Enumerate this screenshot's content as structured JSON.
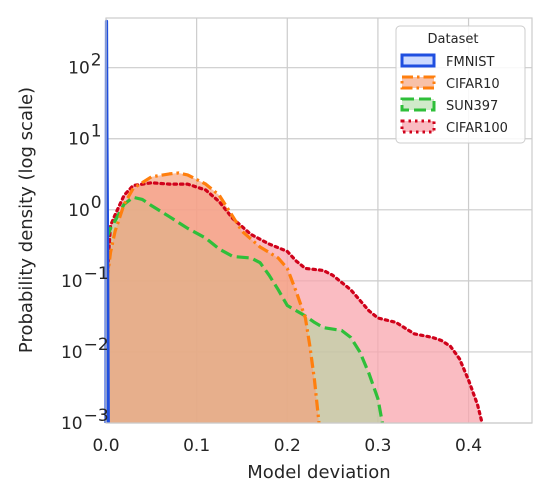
{
  "chart_data": {
    "type": "area",
    "xlabel": "Model deviation",
    "ylabel": "Probability density (log scale)",
    "x_range": [
      0.0,
      0.47
    ],
    "y_range": [
      0.001,
      500
    ],
    "y_scale": "log",
    "grid": true,
    "x_ticks": [
      {
        "value": 0.0,
        "label": "0.0"
      },
      {
        "value": 0.1,
        "label": "0.1"
      },
      {
        "value": 0.2,
        "label": "0.2"
      },
      {
        "value": 0.3,
        "label": "0.3"
      },
      {
        "value": 0.4,
        "label": "0.4"
      }
    ],
    "y_ticks": [
      {
        "value": 0.001,
        "base": "10",
        "exp": "−3"
      },
      {
        "value": 0.01,
        "base": "10",
        "exp": "−2"
      },
      {
        "value": 0.1,
        "base": "10",
        "exp": "−1"
      },
      {
        "value": 1,
        "base": "10",
        "exp": "0"
      },
      {
        "value": 10,
        "base": "10",
        "exp": "1"
      },
      {
        "value": 100,
        "base": "10",
        "exp": "2"
      }
    ],
    "legend": {
      "title": "Dataset",
      "position": "top-right"
    },
    "series": [
      {
        "name": "CIFAR100",
        "color": "#d0021b",
        "fill": "#f8a6ad",
        "fill_opacity": 0.75,
        "dash": "dotted",
        "points": [
          [
            0.001,
            0.1
          ],
          [
            0.005,
            0.6
          ],
          [
            0.01,
            0.85
          ],
          [
            0.02,
            1.6
          ],
          [
            0.03,
            2.2
          ],
          [
            0.05,
            2.4
          ],
          [
            0.07,
            2.3
          ],
          [
            0.09,
            2.3
          ],
          [
            0.11,
            1.9
          ],
          [
            0.125,
            1.3
          ],
          [
            0.14,
            0.75
          ],
          [
            0.16,
            0.45
          ],
          [
            0.18,
            0.33
          ],
          [
            0.2,
            0.26
          ],
          [
            0.21,
            0.19
          ],
          [
            0.22,
            0.15
          ],
          [
            0.24,
            0.14
          ],
          [
            0.25,
            0.12
          ],
          [
            0.27,
            0.075
          ],
          [
            0.29,
            0.038
          ],
          [
            0.3,
            0.03
          ],
          [
            0.32,
            0.026
          ],
          [
            0.34,
            0.018
          ],
          [
            0.36,
            0.016
          ],
          [
            0.37,
            0.0145
          ],
          [
            0.38,
            0.012
          ],
          [
            0.39,
            0.008
          ],
          [
            0.4,
            0.004
          ],
          [
            0.41,
            0.0018
          ],
          [
            0.415,
            0.001
          ]
        ]
      },
      {
        "name": "SUN397",
        "color": "#2fbf3a",
        "fill": "#a9d99e",
        "fill_opacity": 0.55,
        "dash": "dashed",
        "points": [
          [
            0.001,
            0.4
          ],
          [
            0.005,
            0.55
          ],
          [
            0.01,
            0.7
          ],
          [
            0.02,
            1.2
          ],
          [
            0.03,
            1.5
          ],
          [
            0.04,
            1.4
          ],
          [
            0.05,
            1.15
          ],
          [
            0.07,
            0.8
          ],
          [
            0.09,
            0.55
          ],
          [
            0.11,
            0.4
          ],
          [
            0.125,
            0.28
          ],
          [
            0.14,
            0.22
          ],
          [
            0.16,
            0.21
          ],
          [
            0.17,
            0.18
          ],
          [
            0.18,
            0.12
          ],
          [
            0.19,
            0.075
          ],
          [
            0.2,
            0.045
          ],
          [
            0.21,
            0.038
          ],
          [
            0.22,
            0.032
          ],
          [
            0.23,
            0.026
          ],
          [
            0.24,
            0.022
          ],
          [
            0.26,
            0.02
          ],
          [
            0.27,
            0.016
          ],
          [
            0.28,
            0.01
          ],
          [
            0.29,
            0.005
          ],
          [
            0.3,
            0.0022
          ],
          [
            0.305,
            0.001
          ]
        ]
      },
      {
        "name": "CIFAR10",
        "color": "#ff7f0e",
        "fill": "#f4a07a",
        "fill_opacity": 0.65,
        "dash": "dashdot",
        "points": [
          [
            0.001,
            0.1
          ],
          [
            0.005,
            0.25
          ],
          [
            0.01,
            0.5
          ],
          [
            0.02,
            1.2
          ],
          [
            0.03,
            2.0
          ],
          [
            0.05,
            2.9
          ],
          [
            0.07,
            3.2
          ],
          [
            0.08,
            3.3
          ],
          [
            0.09,
            3.1
          ],
          [
            0.11,
            2.3
          ],
          [
            0.125,
            1.6
          ],
          [
            0.14,
            0.8
          ],
          [
            0.15,
            0.5
          ],
          [
            0.17,
            0.3
          ],
          [
            0.19,
            0.21
          ],
          [
            0.2,
            0.15
          ],
          [
            0.21,
            0.07
          ],
          [
            0.22,
            0.03
          ],
          [
            0.225,
            0.012
          ],
          [
            0.23,
            0.004
          ],
          [
            0.235,
            0.001
          ]
        ]
      },
      {
        "name": "FMNIST",
        "color": "#1f4fe0",
        "fill": "#c7d6ff",
        "fill_opacity": 0.9,
        "dash": "solid",
        "points": [
          [
            0.0,
            0.001
          ],
          [
            0.0005,
            450
          ],
          [
            0.001,
            12
          ],
          [
            0.0015,
            0.8
          ],
          [
            0.002,
            0.05
          ],
          [
            0.0025,
            0.001
          ]
        ]
      }
    ]
  }
}
